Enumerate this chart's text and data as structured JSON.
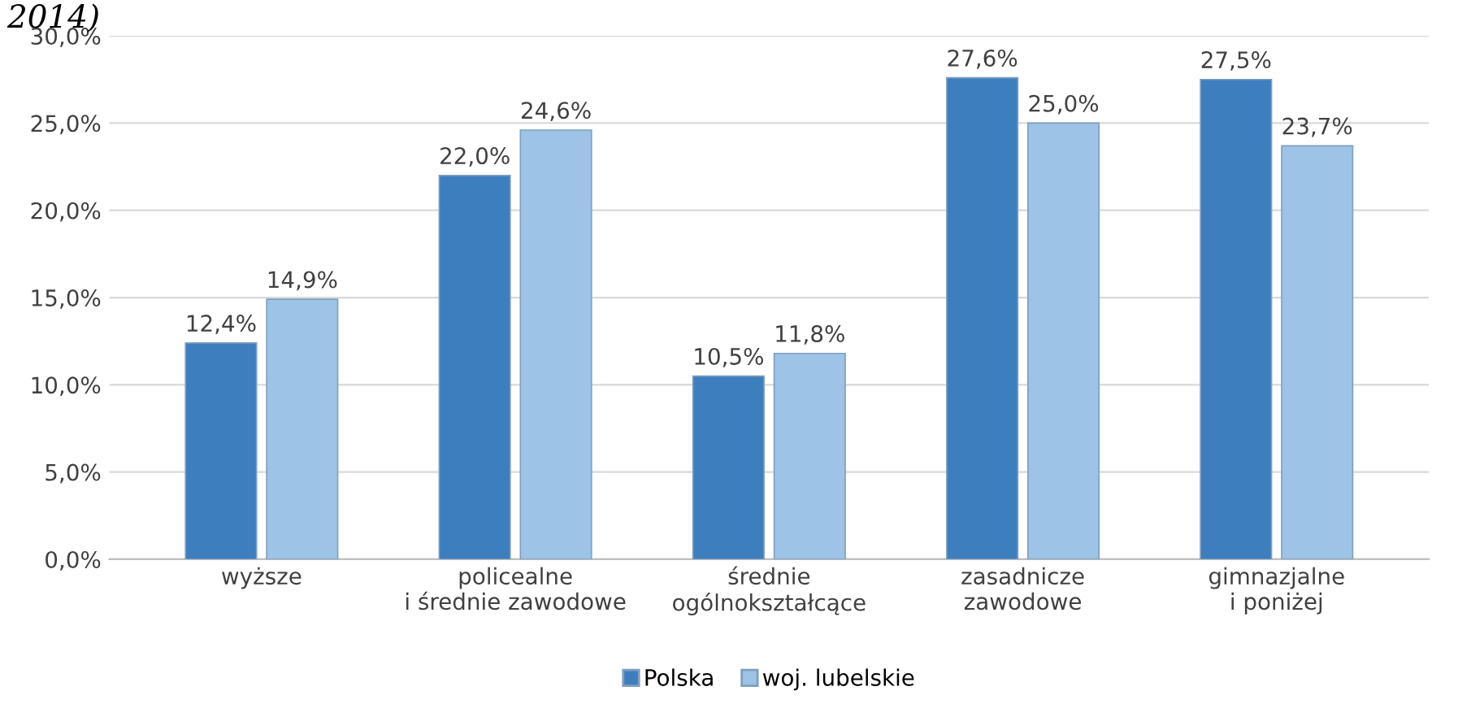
{
  "chart_data": {
    "type": "bar",
    "title": "2014)",
    "categories": [
      "wyższe",
      "policealne\ni średnie zawodowe",
      "średnie\nogólnokształcące",
      "zasadnicze\nzawodowe",
      "gimnazjalne\ni poniżej"
    ],
    "series": [
      {
        "name": "Polska",
        "color": "#3d7ebf",
        "values": [
          12.4,
          22.0,
          10.5,
          27.6,
          27.5
        ],
        "value_labels": [
          "12,4%",
          "22,0%",
          "10,5%",
          "27,6%",
          "27,5%"
        ]
      },
      {
        "name": "woj. lubelskie",
        "color": "#9dc3e6",
        "values": [
          14.9,
          24.6,
          11.8,
          25.0,
          23.7
        ],
        "value_labels": [
          "14,9%",
          "24,6%",
          "11,8%",
          "25,0%",
          "23,7%"
        ]
      }
    ],
    "ylim": [
      0,
      30
    ],
    "yticks": [
      {
        "value": 0,
        "label": "0,0%"
      },
      {
        "value": 5,
        "label": "5,0%"
      },
      {
        "value": 10,
        "label": "10,0%"
      },
      {
        "value": 15,
        "label": "15,0%"
      },
      {
        "value": 20,
        "label": "20,0%"
      },
      {
        "value": 25,
        "label": "25,0%"
      },
      {
        "value": 30,
        "label": "30,0%"
      }
    ],
    "grid": "y",
    "legend": "bottom"
  }
}
